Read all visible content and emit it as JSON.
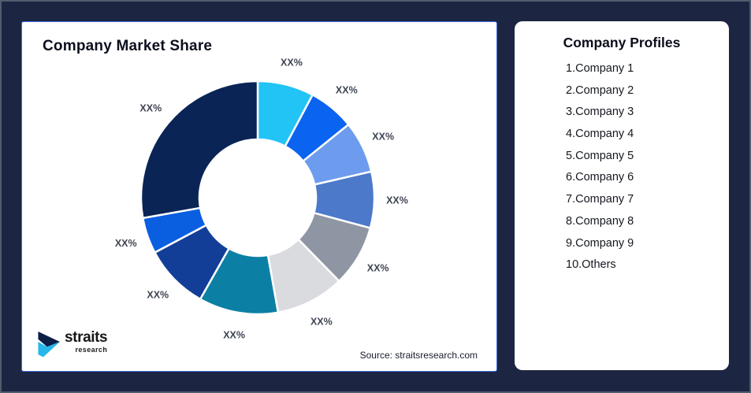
{
  "page": {
    "background_color": "#1C2541",
    "frame_border_color": "#535B6F"
  },
  "left_card": {
    "title": "Company Market Share",
    "source_note": "Source: straitsresearch.com",
    "border_color": "#3E6BE8"
  },
  "logo": {
    "name": "straits",
    "subname": "research",
    "mark_primary_color": "#0D1F47",
    "mark_accent_color": "#27B7EA"
  },
  "right_card": {
    "title": "Company Profiles",
    "items": [
      "1.Company 1",
      "2.Company 2",
      "3.Company 3",
      "4.Company 4",
      "5.Company 5",
      "6.Company 6",
      "7.Company 7",
      "8.Company 8",
      "9.Company 9",
      "10.Others"
    ]
  },
  "chart_data": {
    "type": "pie",
    "subtype": "donut",
    "title": "Company Market Share",
    "slice_labels_masked": true,
    "start_angle_deg": 0,
    "direction": "clockwise",
    "label_text_color": "#3E4452",
    "segments": [
      {
        "name": "Company 1",
        "display_label": "XX%",
        "angle_share_pct": 7.8,
        "color": "#22C3F5"
      },
      {
        "name": "Company 2",
        "display_label": "XX%",
        "angle_share_pct": 6.4,
        "color": "#0B64EF"
      },
      {
        "name": "Company 3",
        "display_label": "XX%",
        "angle_share_pct": 7.2,
        "color": "#6D9CEE"
      },
      {
        "name": "Company 4",
        "display_label": "XX%",
        "angle_share_pct": 7.8,
        "color": "#4C79C9"
      },
      {
        "name": "Company 5",
        "display_label": "XX%",
        "angle_share_pct": 8.5,
        "color": "#8F96A3"
      },
      {
        "name": "Company 6",
        "display_label": "XX%",
        "angle_share_pct": 9.5,
        "color": "#D9DBDF"
      },
      {
        "name": "Company 7",
        "display_label": "XX%",
        "angle_share_pct": 11.0,
        "color": "#0B80A4"
      },
      {
        "name": "Company 8",
        "display_label": "XX%",
        "angle_share_pct": 9.0,
        "color": "#123E98"
      },
      {
        "name": "Company 9",
        "display_label": "XX%",
        "angle_share_pct": 5.0,
        "color": "#0A5FE0"
      },
      {
        "name": "Others",
        "display_label": "XX%",
        "angle_share_pct": 27.8,
        "color": "#0A2456"
      }
    ]
  }
}
